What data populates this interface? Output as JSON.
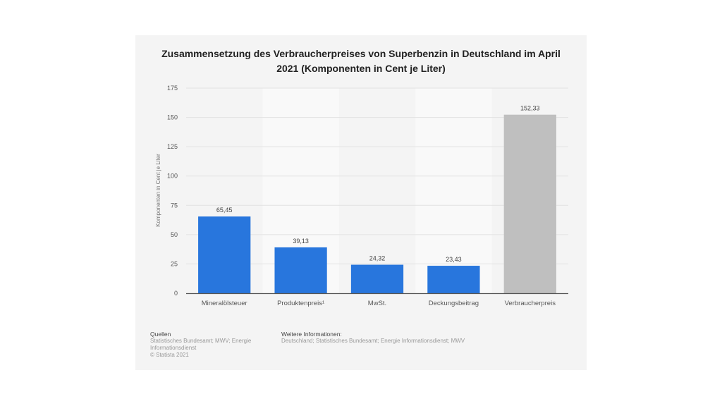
{
  "chart_data": {
    "type": "bar",
    "title": "Zusammensetzung des Verbraucherpreises von Superbenzin in Deutschland im April 2021 (Komponenten in Cent je Liter)",
    "title_lines": [
      "Zusammensetzung des Verbraucherpreises von Superbenzin in Deutschland im April",
      "2021 (Komponenten in Cent je Liter)"
    ],
    "categories": [
      "Mineralölsteuer",
      "Produktenpreis¹",
      "MwSt.",
      "Deckungsbeitrag",
      "Verbraucherpreis"
    ],
    "values": [
      65.45,
      39.13,
      24.32,
      23.43,
      152.33
    ],
    "value_labels": [
      "65,45",
      "39,13",
      "24,32",
      "23,43",
      "152,33"
    ],
    "bar_colors": [
      "#2876dd",
      "#2876dd",
      "#2876dd",
      "#2876dd",
      "#bfbfbf"
    ],
    "xlabel": "",
    "ylabel": "Komponenten in Cent je Liter",
    "ylim": [
      0,
      175
    ],
    "yticks": [
      0,
      25,
      50,
      75,
      100,
      125,
      150,
      175
    ],
    "grid": true,
    "legend": "none"
  },
  "footer": {
    "sources_heading": "Quellen",
    "sources_lines": [
      "Statistisches Bundesamt; MWV; Energie",
      "Informationsdienst",
      "© Statista 2021"
    ],
    "info_heading": "Weitere Informationen:",
    "info_text": "Deutschland; Statistisches Bundesamt; Energie Informationsdienst; MWV"
  }
}
